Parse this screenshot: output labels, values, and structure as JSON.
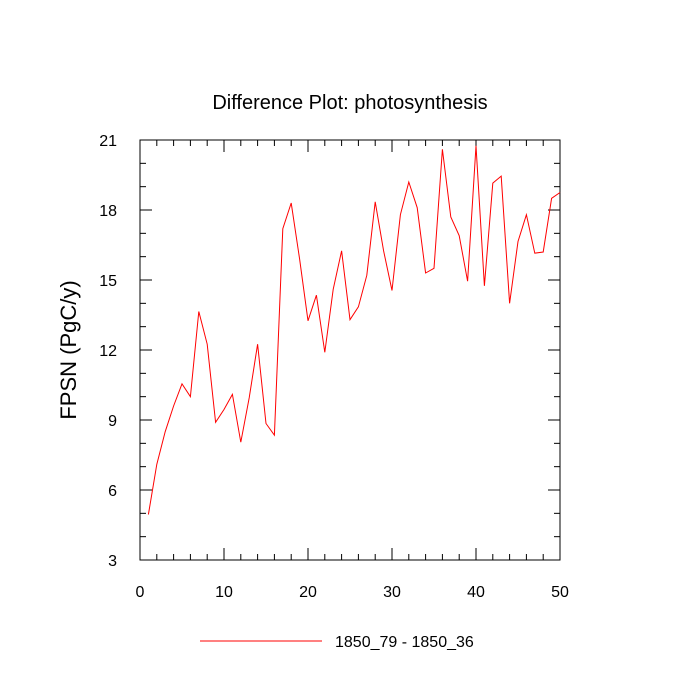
{
  "chart_data": {
    "type": "line",
    "title": "Difference Plot: photosynthesis",
    "xlabel": "",
    "ylabel": "FPSN  (PgC/y)",
    "xlim": [
      0,
      50
    ],
    "ylim": [
      3,
      21
    ],
    "x_ticks": [
      0,
      10,
      20,
      30,
      40,
      50
    ],
    "y_ticks": [
      3,
      6,
      9,
      12,
      15,
      18,
      21
    ],
    "legend": {
      "position": "bottom-center"
    },
    "grid": false,
    "series": [
      {
        "name": "1850_79 - 1850_36",
        "color": "#ff0000",
        "x": [
          1,
          2,
          3,
          4,
          5,
          6,
          7,
          8,
          9,
          10,
          11,
          12,
          13,
          14,
          15,
          16,
          17,
          18,
          19,
          20,
          21,
          22,
          23,
          24,
          25,
          26,
          27,
          28,
          29,
          30,
          31,
          32,
          33,
          34,
          35,
          36,
          37,
          38,
          39,
          40,
          41,
          42,
          43,
          44,
          45,
          46,
          47,
          48,
          49,
          50
        ],
        "values": [
          4.95,
          7.1,
          8.5,
          9.6,
          10.55,
          10.0,
          13.65,
          12.25,
          8.9,
          9.45,
          10.1,
          8.05,
          9.95,
          12.25,
          8.85,
          8.35,
          17.2,
          18.3,
          15.9,
          13.25,
          14.35,
          11.9,
          14.6,
          16.25,
          13.3,
          13.85,
          15.2,
          18.35,
          16.25,
          14.55,
          17.8,
          19.2,
          18.1,
          15.3,
          15.5,
          20.6,
          17.7,
          16.9,
          14.95,
          20.75,
          14.75,
          19.15,
          19.45,
          14.0,
          16.65,
          17.8,
          16.15,
          16.2,
          18.5,
          18.75
        ]
      }
    ]
  }
}
